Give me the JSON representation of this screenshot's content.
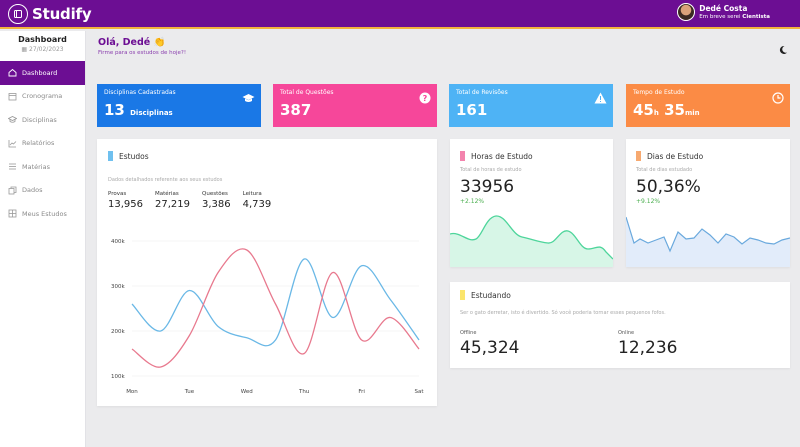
{
  "app": {
    "name": "Studify"
  },
  "user": {
    "name": "Dedé Costa",
    "sub_prefix": "Em breve serei",
    "sub_role": "Cientista"
  },
  "sidebar": {
    "title": "Dashboard",
    "date": "27/02/2023",
    "items": [
      {
        "label": "Dashboard",
        "icon": "home-icon",
        "active": true
      },
      {
        "label": "Cronograma",
        "icon": "calendar-icon"
      },
      {
        "label": "Disciplinas",
        "icon": "graduation-cap-icon"
      },
      {
        "label": "Relatórios",
        "icon": "chart-line-icon"
      },
      {
        "label": "Matérias",
        "icon": "list-icon"
      },
      {
        "label": "Dados",
        "icon": "copy-icon"
      },
      {
        "label": "Meus Estudos",
        "icon": "grid-icon"
      }
    ]
  },
  "greeting": {
    "title": "Olá, Dedé 👏",
    "subtitle": "Firme para os estudos de hoje?!"
  },
  "stats": [
    {
      "label": "Disciplinas Cadastradas",
      "value": "13",
      "suffix": "Disciplinas",
      "color": "#1a78e6",
      "icon": "graduation-cap-icon"
    },
    {
      "label": "Total de Questões",
      "value": "387",
      "color": "#f6479a",
      "icon": "question-circle-icon"
    },
    {
      "label": "Total de Revisões",
      "value": "161",
      "color": "#4eb3f5",
      "icon": "warning-icon"
    },
    {
      "label": "Tempo de Estudo",
      "hours": "45",
      "h_unit": "h",
      "minutes": "35",
      "m_unit": "min",
      "color": "#fb8b45",
      "icon": "clock-icon"
    }
  ],
  "estudos": {
    "title": "Estudos",
    "subtitle": "Dados detalhados referente aos seus estudos",
    "metrics": [
      {
        "label": "Provas",
        "value": "13,956"
      },
      {
        "label": "Matérias",
        "value": "27,219"
      },
      {
        "label": "Questões",
        "value": "3,386"
      },
      {
        "label": "Leitura",
        "value": "4,739"
      }
    ],
    "mark_color": "#6fc0ef"
  },
  "horas": {
    "title": "Horas de Estudo",
    "subtitle": "Total de horas de estudo",
    "value": "33956",
    "delta": "+2.12%",
    "mark_color": "#f383ad",
    "line_color": "#4ed59b"
  },
  "dias": {
    "title": "Dias de Estudo",
    "subtitle": "Total de dias estudado",
    "value": "50,36%",
    "delta": "+9.12%",
    "mark_color": "#f7a970",
    "line_color": "#6aa9dd"
  },
  "estudando": {
    "title": "Estudando",
    "text": "Ser o gato derretar, isto é divertido. Só você poderia tornar esses pequenos fofos.",
    "mark_color": "#fbe56c",
    "offline_label": "Offline",
    "offline_value": "45,324",
    "online_label": "Online",
    "online_value": "12,236"
  },
  "chart_data": {
    "type": "line",
    "categories": [
      "Mon",
      "Tue",
      "Wed",
      "Thu",
      "Fri",
      "Sat"
    ],
    "x": [
      0,
      0.5,
      1,
      1.5,
      2,
      2.5,
      3,
      3.5,
      4,
      4.5,
      5
    ],
    "ylim": [
      100,
      400
    ],
    "yticks": [
      100,
      200,
      300,
      400
    ],
    "ytick_labels": [
      "100k",
      "200k",
      "300k",
      "400k"
    ],
    "series": [
      {
        "color": "#6ab8e6",
        "values": [
          260,
          200,
          290,
          210,
          185,
          180,
          360,
          230,
          345,
          270,
          180
        ]
      },
      {
        "color": "#e8798e",
        "values": [
          160,
          120,
          190,
          330,
          380,
          260,
          150,
          330,
          180,
          230,
          160
        ]
      }
    ]
  }
}
